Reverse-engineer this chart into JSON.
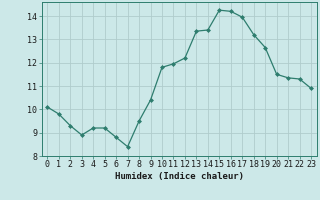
{
  "x": [
    0,
    1,
    2,
    3,
    4,
    5,
    6,
    7,
    8,
    9,
    10,
    11,
    12,
    13,
    14,
    15,
    16,
    17,
    18,
    19,
    20,
    21,
    22,
    23
  ],
  "y": [
    10.1,
    9.8,
    9.3,
    8.9,
    9.2,
    9.2,
    8.8,
    8.4,
    9.5,
    10.4,
    11.8,
    11.95,
    12.2,
    13.35,
    13.4,
    14.25,
    14.2,
    13.95,
    13.2,
    12.65,
    11.5,
    11.35,
    11.3,
    10.9
  ],
  "line_color": "#2e7d6e",
  "marker": "D",
  "marker_size": 2.0,
  "bg_color": "#cce8e8",
  "grid_color": "#b0cccc",
  "xlabel": "Humidex (Indice chaleur)",
  "ylim": [
    8,
    14.6
  ],
  "xlim": [
    -0.5,
    23.5
  ],
  "yticks": [
    8,
    9,
    10,
    11,
    12,
    13,
    14
  ],
  "xticks": [
    0,
    1,
    2,
    3,
    4,
    5,
    6,
    7,
    8,
    9,
    10,
    11,
    12,
    13,
    14,
    15,
    16,
    17,
    18,
    19,
    20,
    21,
    22,
    23
  ],
  "xlabel_fontsize": 6.5,
  "tick_fontsize": 6.0,
  "line_width": 0.9
}
